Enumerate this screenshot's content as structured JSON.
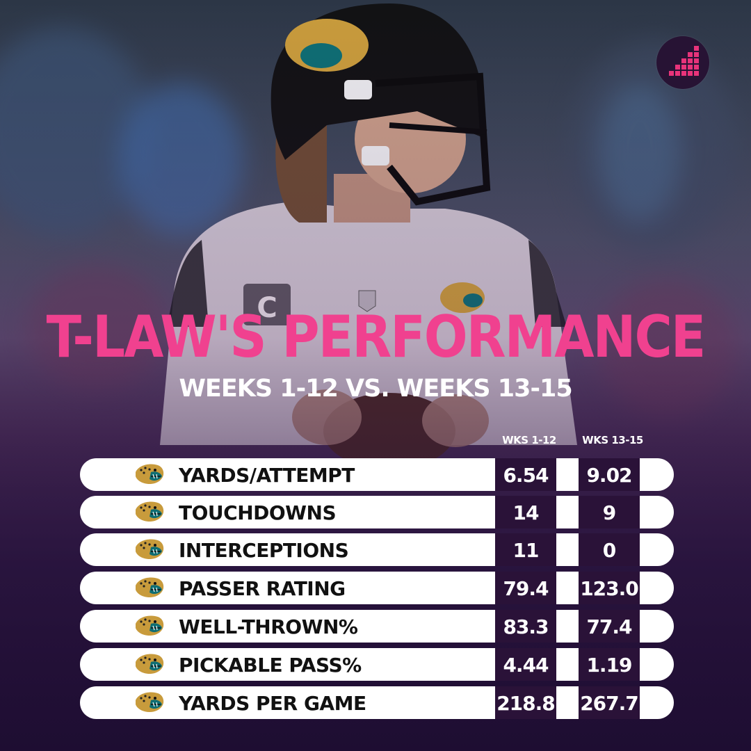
{
  "title": "T-LAW'S PERFORMANCE",
  "subtitle": "WEEKS 1-12 VS. WEEKS 13-15",
  "columns": [
    "WKS 1-12",
    "WKS 13-15"
  ],
  "rows": [
    {
      "label": "YARDS/ATTEMPT",
      "v1": "6.54",
      "v2": "9.02"
    },
    {
      "label": "TOUCHDOWNS",
      "v1": "14",
      "v2": "9"
    },
    {
      "label": "INTERCEPTIONS",
      "v1": "11",
      "v2": "0"
    },
    {
      "label": "PASSER RATING",
      "v1": "79.4",
      "v2": "123.0"
    },
    {
      "label": "WELL-THROWN%",
      "v1": "83.3",
      "v2": "77.4"
    },
    {
      "label": "PICKABLE PASS%",
      "v1": "4.44",
      "v2": "1.19"
    },
    {
      "label": "YARDS PER GAME",
      "v1": "218.8",
      "v2": "267.7"
    }
  ],
  "colors": {
    "title": "#f0418f",
    "cell_bg": "#2a1238",
    "row_bg": "#ffffff",
    "logo_pink": "#e8337a"
  },
  "icons": {
    "row_badge": "jaguar-logo-icon",
    "brand": "bar-steps-logo-icon"
  }
}
